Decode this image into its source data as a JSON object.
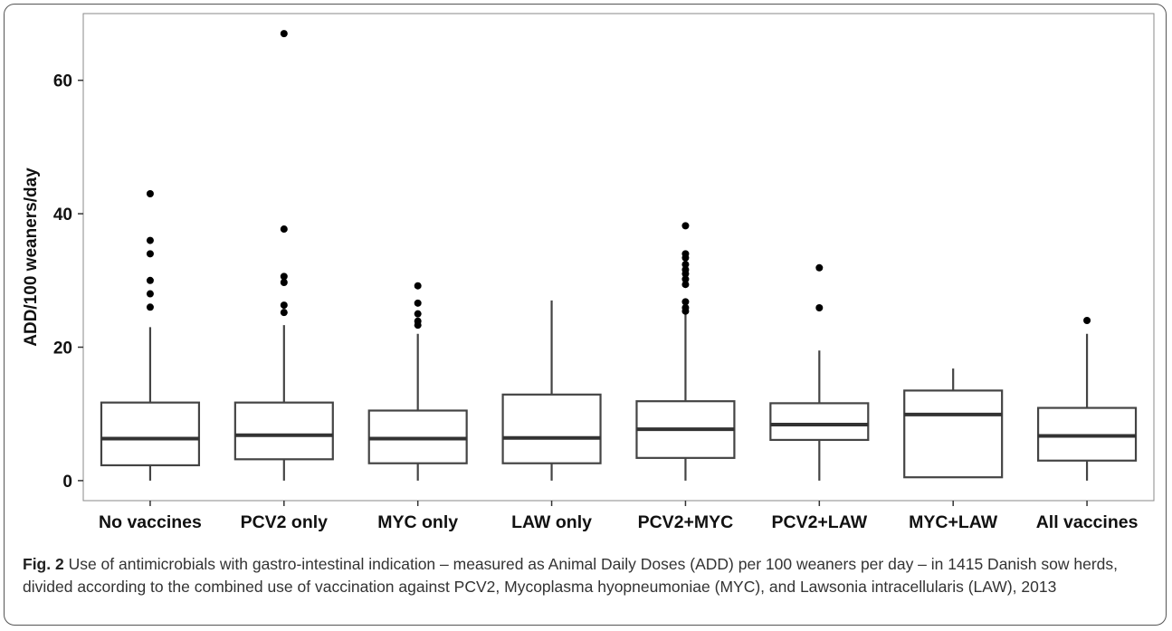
{
  "chart_data": {
    "type": "box",
    "ylabel": "ADD/100 weaners/day",
    "xlabel": "",
    "ylim": [
      -3,
      70
    ],
    "yticks": [
      0,
      20,
      40,
      60
    ],
    "categories": [
      "No vaccines",
      "PCV2 only",
      "MYC only",
      "LAW only",
      "PCV2+MYC",
      "PCV2+LAW",
      "MYC+LAW",
      "All vaccines"
    ],
    "boxes": [
      {
        "min": 0,
        "q1": 2.3,
        "median": 6.3,
        "q3": 11.7,
        "max": 23,
        "outliers": [
          26,
          28,
          30,
          34,
          36,
          43
        ]
      },
      {
        "min": 0,
        "q1": 3.2,
        "median": 6.8,
        "q3": 11.7,
        "max": 23.3,
        "outliers": [
          25.2,
          26.3,
          29.7,
          30.6,
          37.7,
          67
        ]
      },
      {
        "min": 0,
        "q1": 2.6,
        "median": 6.3,
        "q3": 10.5,
        "max": 22,
        "outliers": [
          23.3,
          23.9,
          25,
          26.6,
          29.2
        ]
      },
      {
        "min": 0,
        "q1": 2.6,
        "median": 6.4,
        "q3": 12.9,
        "max": 27,
        "outliers": []
      },
      {
        "min": 0,
        "q1": 3.4,
        "median": 7.7,
        "q3": 11.9,
        "max": 25,
        "outliers": [
          25.4,
          25.9,
          26.8,
          29.4,
          30.2,
          31,
          31.6,
          32.4,
          33.4,
          34,
          38.2
        ]
      },
      {
        "min": 0,
        "q1": 6.1,
        "median": 8.4,
        "q3": 11.6,
        "max": 19.5,
        "outliers": [
          25.9,
          31.9
        ]
      },
      {
        "min": 0.5,
        "q1": 0.5,
        "median": 9.9,
        "q3": 13.5,
        "max": 16.8,
        "outliers": []
      },
      {
        "min": 0,
        "q1": 3,
        "median": 6.7,
        "q3": 10.9,
        "max": 22,
        "outliers": [
          24
        ]
      }
    ]
  },
  "caption": {
    "label": "Fig. 2",
    "text": " Use of antimicrobials with gastro-intestinal indication – measured as Animal Daily Doses (ADD) per 100 weaners per day – in 1415 Danish sow herds, divided according to the combined use of vaccination against PCV2, Mycoplasma hyopneumoniae (MYC), and Lawsonia intracellularis (LAW), 2013"
  }
}
